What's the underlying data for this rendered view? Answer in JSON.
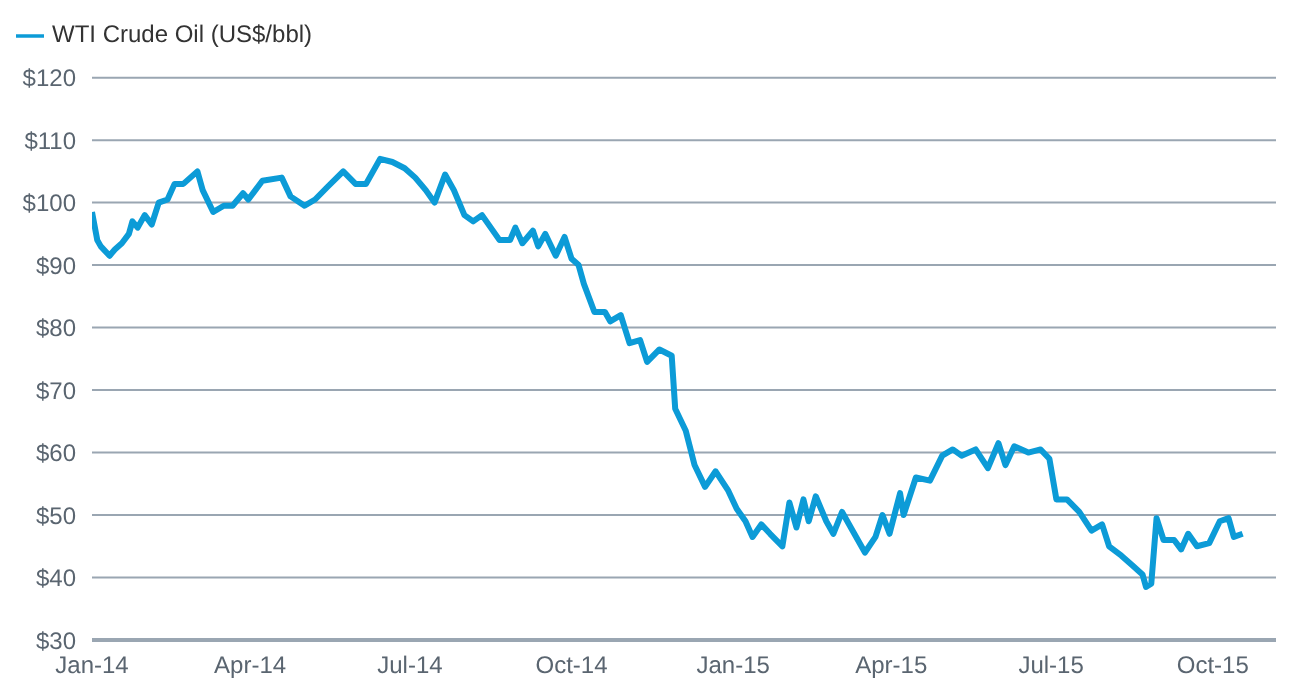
{
  "chart_data": {
    "type": "line",
    "legend": "top left",
    "grid": "y",
    "marker": "none",
    "line_style": "solid",
    "xlim": [
      "2014-01-01",
      "2015-11-06"
    ],
    "xticks": [
      {
        "value": "2014-01-01",
        "label": "Jan-14"
      },
      {
        "value": "2014-04-01",
        "label": "Apr-14"
      },
      {
        "value": "2014-07-01",
        "label": "Jul-14"
      },
      {
        "value": "2014-10-01",
        "label": "Oct-14"
      },
      {
        "value": "2015-01-01",
        "label": "Jan-15"
      },
      {
        "value": "2015-04-01",
        "label": "Apr-15"
      },
      {
        "value": "2015-07-01",
        "label": "Jul-15"
      },
      {
        "value": "2015-10-01",
        "label": "Oct-15"
      }
    ],
    "ylim": [
      30,
      120
    ],
    "yticks": [
      {
        "value": 30,
        "label": "$30"
      },
      {
        "value": 40,
        "label": "$40"
      },
      {
        "value": 50,
        "label": "$50"
      },
      {
        "value": 60,
        "label": "$60"
      },
      {
        "value": 70,
        "label": "$70"
      },
      {
        "value": 80,
        "label": "$80"
      },
      {
        "value": 90,
        "label": "$90"
      },
      {
        "value": 100,
        "label": "$100"
      },
      {
        "value": 110,
        "label": "$110"
      },
      {
        "value": 120,
        "label": "$120"
      }
    ],
    "x": [
      "2014-01-01",
      "2014-01-04",
      "2014-01-06",
      "2014-01-11",
      "2014-01-14",
      "2014-01-18",
      "2014-01-22",
      "2014-01-24",
      "2014-01-27",
      "2014-01-31",
      "2014-02-04",
      "2014-02-08",
      "2014-02-13",
      "2014-02-17",
      "2014-02-22",
      "2014-03-02",
      "2014-03-05",
      "2014-03-11",
      "2014-03-17",
      "2014-03-22",
      "2014-03-28",
      "2014-03-31",
      "2014-04-08",
      "2014-04-19",
      "2014-04-24",
      "2014-05-02",
      "2014-05-08",
      "2014-05-15",
      "2014-05-24",
      "2014-05-31",
      "2014-06-06",
      "2014-06-14",
      "2014-06-21",
      "2014-06-28",
      "2014-07-04",
      "2014-07-10",
      "2014-07-15",
      "2014-07-21",
      "2014-07-26",
      "2014-08-01",
      "2014-08-06",
      "2014-08-11",
      "2014-08-16",
      "2014-08-21",
      "2014-08-27",
      "2014-08-30",
      "2014-09-03",
      "2014-09-09",
      "2014-09-12",
      "2014-09-16",
      "2014-09-22",
      "2014-09-27",
      "2014-10-01",
      "2014-10-05",
      "2014-10-08",
      "2014-10-14",
      "2014-10-20",
      "2014-10-23",
      "2014-10-29",
      "2014-11-03",
      "2014-11-09",
      "2014-11-13",
      "2014-11-20",
      "2014-11-27",
      "2014-11-29",
      "2014-12-05",
      "2014-12-10",
      "2014-12-16",
      "2014-12-22",
      "2014-12-29",
      "2015-01-03",
      "2015-01-08",
      "2015-01-12",
      "2015-01-17",
      "2015-01-22",
      "2015-01-29",
      "2015-02-02",
      "2015-02-06",
      "2015-02-10",
      "2015-02-13",
      "2015-02-17",
      "2015-02-23",
      "2015-02-27",
      "2015-03-04",
      "2015-03-10",
      "2015-03-17",
      "2015-03-23",
      "2015-03-27",
      "2015-03-31",
      "2015-04-06",
      "2015-04-08",
      "2015-04-15",
      "2015-04-23",
      "2015-04-30",
      "2015-05-06",
      "2015-05-11",
      "2015-05-19",
      "2015-05-26",
      "2015-06-01",
      "2015-06-05",
      "2015-06-10",
      "2015-06-18",
      "2015-06-25",
      "2015-06-30",
      "2015-07-04",
      "2015-07-10",
      "2015-07-17",
      "2015-07-24",
      "2015-07-30",
      "2015-08-03",
      "2015-08-10",
      "2015-08-16",
      "2015-08-22",
      "2015-08-24",
      "2015-08-27",
      "2015-08-30",
      "2015-09-03",
      "2015-09-09",
      "2015-09-13",
      "2015-09-17",
      "2015-09-22",
      "2015-09-29",
      "2015-10-05",
      "2015-10-10",
      "2015-10-13",
      "2015-10-18"
    ],
    "series": [
      {
        "name": "WTI Crude Oil (US$/bbl)",
        "color": "#0c9bd7",
        "values": [
          98.5,
          94,
          93,
          91.5,
          92.5,
          93.5,
          95,
          97,
          96,
          98,
          96.5,
          100,
          100.5,
          103,
          103,
          105,
          102,
          98.5,
          99.5,
          99.5,
          101.5,
          100.5,
          103.5,
          104,
          101,
          99.5,
          100.5,
          102.5,
          105,
          103,
          103,
          107,
          106.5,
          105.5,
          104,
          102,
          100,
          104.5,
          102,
          98,
          97,
          98,
          96,
          94,
          94,
          96,
          93.5,
          95.5,
          93,
          95,
          91.5,
          94.5,
          91,
          90,
          87,
          82.5,
          82.5,
          81,
          82,
          77.5,
          78,
          74.5,
          76.5,
          75.5,
          67,
          63.5,
          58,
          54.5,
          57,
          54,
          51,
          49,
          46.5,
          48.5,
          47,
          45,
          52,
          48,
          52.5,
          49,
          53,
          49,
          47,
          50.5,
          47.5,
          44,
          46.5,
          50,
          47,
          53.5,
          50,
          56,
          55.5,
          59.5,
          60.5,
          59.5,
          60.5,
          57.5,
          61.5,
          58,
          61,
          60,
          60.5,
          59,
          52.5,
          52.5,
          50.5,
          47.5,
          48.5,
          45,
          43.5,
          42,
          40.5,
          38.5,
          39,
          49.5,
          46,
          46,
          44.5,
          47,
          45,
          45.5,
          49,
          49.5,
          46.5,
          47
        ]
      }
    ]
  }
}
